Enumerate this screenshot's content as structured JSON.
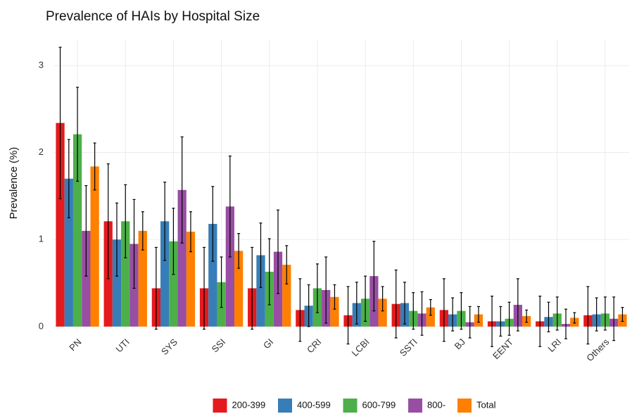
{
  "chart_data": {
    "type": "bar",
    "title": "Prevalence of HAIs by Hospital Size",
    "ylabel": "Prevalence (%)",
    "categories": [
      "PN",
      "UTI",
      "SYS",
      "SSI",
      "GI",
      "CRI",
      "LCBI",
      "SSTI",
      "BJ",
      "EENT",
      "LRI",
      "Others"
    ],
    "series": [
      {
        "name": "200-399",
        "color": "#e41a1c",
        "values": [
          2.34,
          1.21,
          0.44,
          0.44,
          0.44,
          0.19,
          0.13,
          0.26,
          0.19,
          0.06,
          0.06,
          0.13
        ],
        "errors": [
          0.87,
          0.66,
          0.47,
          0.47,
          0.47,
          0.36,
          0.33,
          0.39,
          0.36,
          0.29,
          0.29,
          0.33
        ]
      },
      {
        "name": "400-599",
        "color": "#377eb8",
        "values": [
          1.7,
          1.0,
          1.21,
          1.18,
          0.82,
          0.24,
          0.27,
          0.27,
          0.14,
          0.06,
          0.11,
          0.14
        ],
        "errors": [
          0.45,
          0.42,
          0.45,
          0.43,
          0.37,
          0.24,
          0.24,
          0.24,
          0.19,
          0.17,
          0.17,
          0.19
        ]
      },
      {
        "name": "600-799",
        "color": "#4daf4a",
        "values": [
          2.21,
          1.21,
          0.98,
          0.51,
          0.63,
          0.44,
          0.32,
          0.18,
          0.18,
          0.09,
          0.15,
          0.15
        ],
        "errors": [
          0.54,
          0.42,
          0.38,
          0.29,
          0.38,
          0.28,
          0.26,
          0.21,
          0.21,
          0.19,
          0.19,
          0.19
        ]
      },
      {
        "name": "800-",
        "color": "#984ea3",
        "values": [
          1.1,
          0.95,
          1.57,
          1.38,
          0.86,
          0.42,
          0.58,
          0.15,
          0.05,
          0.25,
          0.03,
          0.09
        ],
        "errors": [
          0.52,
          0.51,
          0.61,
          0.58,
          0.48,
          0.38,
          0.4,
          0.25,
          0.18,
          0.3,
          0.17,
          0.25
        ]
      },
      {
        "name": "Total",
        "color": "#ff7f00",
        "values": [
          1.84,
          1.1,
          1.09,
          0.87,
          0.71,
          0.34,
          0.32,
          0.22,
          0.14,
          0.12,
          0.1,
          0.14
        ],
        "errors": [
          0.27,
          0.22,
          0.23,
          0.2,
          0.22,
          0.14,
          0.14,
          0.09,
          0.09,
          0.07,
          0.06,
          0.08
        ]
      }
    ],
    "ylim": [
      -0.05,
      3.3
    ],
    "yticks": [
      0,
      1,
      2,
      3
    ],
    "grid": true,
    "legend": "bottom"
  }
}
